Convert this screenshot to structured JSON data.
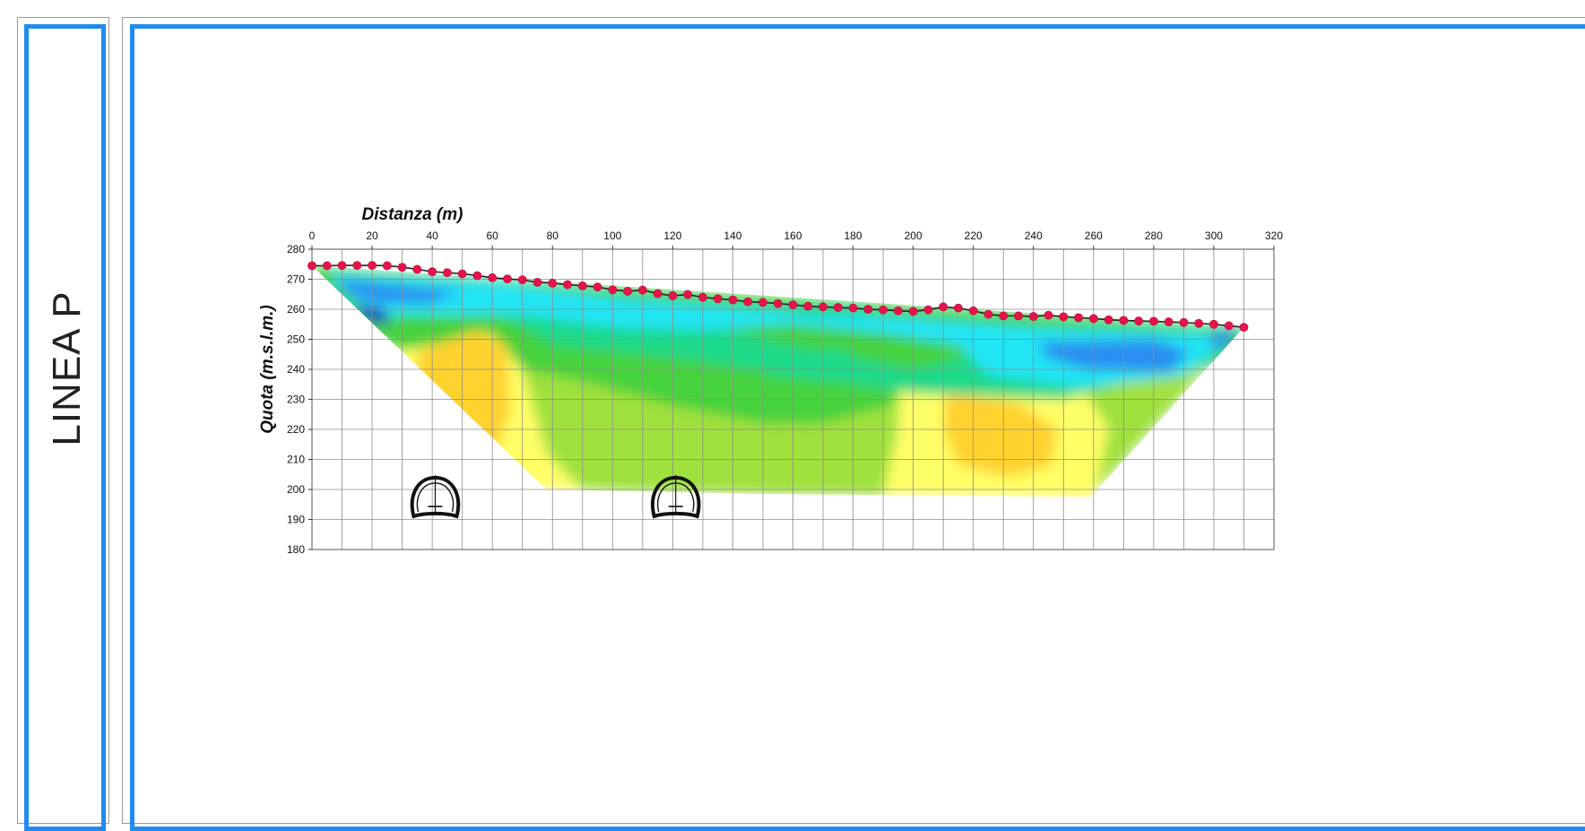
{
  "side_label": "LINEA P",
  "colors": {
    "frame": "#1f8bef",
    "survey_line": "#e5144b",
    "grid": "#8c8c8c"
  },
  "chart_data": {
    "type": "heatmap",
    "title": "",
    "xlabel": "Distanza (m)",
    "ylabel": "Quota (m.s.l.m.)",
    "xlim": [
      0,
      320
    ],
    "ylim": [
      180,
      280
    ],
    "x_ticks": [
      0,
      20,
      40,
      60,
      80,
      100,
      120,
      140,
      160,
      180,
      200,
      220,
      240,
      260,
      280,
      300,
      320
    ],
    "y_ticks": [
      280,
      270,
      260,
      250,
      240,
      230,
      220,
      210,
      200,
      190,
      180
    ],
    "x_axis_position": "top",
    "grid": true,
    "grid_minor_x_step": 10,
    "color_scale": [
      "#2233bb",
      "#2b8ef0",
      "#23e5f5",
      "#1cd98a",
      "#45d23e",
      "#9fe13c",
      "#ffff66",
      "#ffd22e"
    ],
    "surface_profile": [
      [
        0,
        274.5
      ],
      [
        5,
        274.5
      ],
      [
        10,
        274.6
      ],
      [
        15,
        274.6
      ],
      [
        20,
        274.6
      ],
      [
        25,
        274.5
      ],
      [
        30,
        274.0
      ],
      [
        35,
        273.3
      ],
      [
        40,
        272.5
      ],
      [
        45,
        272.2
      ],
      [
        50,
        271.8
      ],
      [
        55,
        271.2
      ],
      [
        60,
        270.5
      ],
      [
        65,
        270.1
      ],
      [
        70,
        269.8
      ],
      [
        75,
        269.0
      ],
      [
        80,
        268.7
      ],
      [
        85,
        268.2
      ],
      [
        90,
        267.8
      ],
      [
        95,
        267.4
      ],
      [
        100,
        266.5
      ],
      [
        105,
        266.0
      ],
      [
        110,
        266.4
      ],
      [
        115,
        265.2
      ],
      [
        120,
        264.5
      ],
      [
        125,
        264.9
      ],
      [
        130,
        264.0
      ],
      [
        135,
        263.5
      ],
      [
        140,
        263.1
      ],
      [
        145,
        262.5
      ],
      [
        150,
        262.3
      ],
      [
        155,
        261.9
      ],
      [
        160,
        261.5
      ],
      [
        165,
        261.0
      ],
      [
        170,
        260.8
      ],
      [
        175,
        260.6
      ],
      [
        180,
        260.4
      ],
      [
        185,
        260.0
      ],
      [
        190,
        259.8
      ],
      [
        195,
        259.5
      ],
      [
        200,
        259.3
      ],
      [
        205,
        259.8
      ],
      [
        210,
        260.8
      ],
      [
        215,
        260.4
      ],
      [
        220,
        259.5
      ],
      [
        225,
        258.3
      ],
      [
        230,
        257.8
      ],
      [
        235,
        257.8
      ],
      [
        240,
        257.6
      ],
      [
        245,
        258.0
      ],
      [
        250,
        257.5
      ],
      [
        255,
        257.2
      ],
      [
        260,
        256.9
      ],
      [
        265,
        256.5
      ],
      [
        270,
        256.3
      ],
      [
        275,
        256.1
      ],
      [
        280,
        256.0
      ],
      [
        285,
        255.8
      ],
      [
        290,
        255.6
      ],
      [
        295,
        255.3
      ],
      [
        300,
        255.0
      ],
      [
        305,
        254.5
      ],
      [
        310,
        254.0
      ]
    ],
    "section_outline": [
      [
        0,
        274.5
      ],
      [
        310,
        254.0
      ],
      [
        259,
        197.5
      ],
      [
        150,
        198.5
      ],
      [
        78,
        200.0
      ]
    ],
    "tunnels": [
      {
        "x": 41,
        "y": 204.5
      },
      {
        "x": 121,
        "y": 204.5
      }
    ]
  }
}
